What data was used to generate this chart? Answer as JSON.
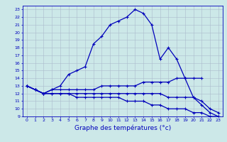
{
  "line1": {
    "x": [
      0,
      1,
      2,
      3,
      4,
      5,
      6,
      7,
      8,
      9,
      10,
      11,
      12,
      13,
      14,
      15,
      16,
      17,
      18,
      19,
      20,
      21
    ],
    "y": [
      13,
      12.5,
      12,
      12.5,
      13,
      14.5,
      15,
      15.5,
      18.5,
      19.5,
      21,
      21.5,
      22,
      23,
      22.5,
      21,
      16.5,
      18,
      16.5,
      14,
      14,
      14
    ]
  },
  "line2": {
    "x": [
      0,
      1,
      2,
      3,
      4,
      5,
      6,
      7,
      8,
      9,
      10,
      11,
      12,
      13,
      14,
      15,
      16,
      17,
      18,
      19,
      20,
      21,
      22,
      23
    ],
    "y": [
      13,
      12.5,
      12,
      12.5,
      12.5,
      12.5,
      12.5,
      12.5,
      12.5,
      13,
      13,
      13,
      13,
      13,
      13.5,
      13.5,
      13.5,
      13.5,
      14,
      14,
      11.5,
      10.5,
      9.5,
      9
    ]
  },
  "line3": {
    "x": [
      0,
      1,
      2,
      3,
      4,
      5,
      6,
      7,
      8,
      9,
      10,
      11,
      12,
      13,
      14,
      15,
      16,
      17,
      18,
      19,
      20,
      21,
      22,
      23
    ],
    "y": [
      13,
      12.5,
      12,
      12,
      12,
      12,
      11.5,
      11.5,
      11.5,
      11.5,
      11.5,
      11.5,
      11,
      11,
      11,
      10.5,
      10.5,
      10,
      10,
      10,
      9.5,
      9.5,
      9,
      9
    ]
  },
  "line4": {
    "x": [
      0,
      1,
      2,
      3,
      4,
      5,
      6,
      7,
      8,
      9,
      10,
      11,
      12,
      13,
      14,
      15,
      16,
      17,
      18,
      19,
      20,
      21,
      22,
      23
    ],
    "y": [
      13,
      12.5,
      12,
      12,
      12,
      12,
      12,
      12,
      12,
      12,
      12,
      12,
      12,
      12,
      12,
      12,
      12,
      11.5,
      11.5,
      11.5,
      11.5,
      11,
      10,
      9.5
    ]
  },
  "xlim": [
    -0.5,
    23.5
  ],
  "ylim": [
    9,
    23.5
  ],
  "yticks": [
    9,
    10,
    11,
    12,
    13,
    14,
    15,
    16,
    17,
    18,
    19,
    20,
    21,
    22,
    23
  ],
  "xticks": [
    0,
    1,
    2,
    3,
    4,
    5,
    6,
    7,
    8,
    9,
    10,
    11,
    12,
    13,
    14,
    15,
    16,
    17,
    18,
    19,
    20,
    21,
    22,
    23
  ],
  "xlabel": "Graphe des températures (°c)",
  "line_color": "#0000bb",
  "background_color": "#cce8e8",
  "grid_color": "#aabbcc",
  "tick_fontsize": 4.5,
  "xlabel_fontsize": 6.5,
  "linewidth": 0.9,
  "markersize": 3.5
}
